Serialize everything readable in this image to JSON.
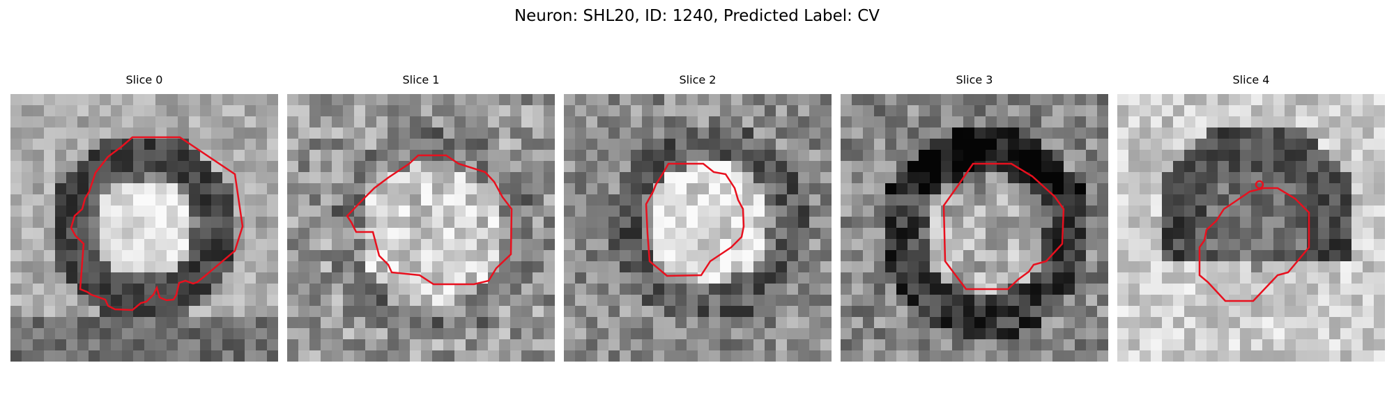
{
  "figure": {
    "title": "Neuron: SHL20, ID: 1240, Predicted Label: CV"
  },
  "contour_color": "#e8101e",
  "slices": [
    {
      "title": "Slice 0"
    },
    {
      "title": "Slice 1"
    },
    {
      "title": "Slice 2"
    },
    {
      "title": "Slice 3"
    },
    {
      "title": "Slice 4"
    }
  ]
}
